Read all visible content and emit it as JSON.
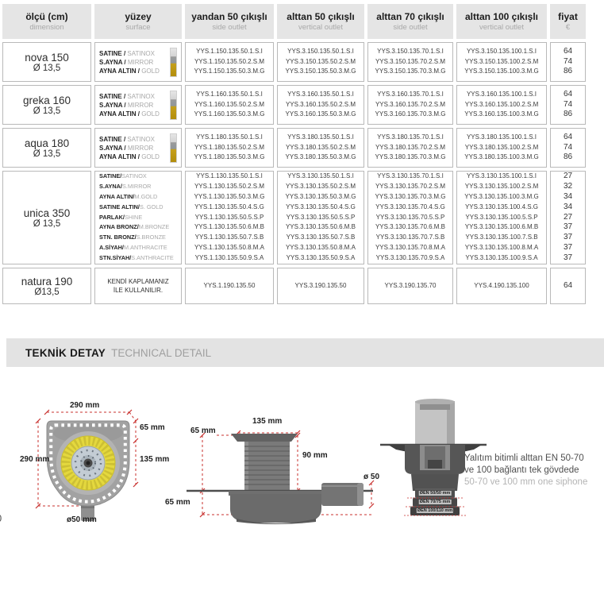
{
  "page": {
    "partial_page_number": "0"
  },
  "table": {
    "headers": [
      {
        "tr": "ölçü (cm)",
        "en": "dimension"
      },
      {
        "tr": "yüzey",
        "en": "surface"
      },
      {
        "tr": "yandan 50 çıkışlı",
        "en": "side outlet"
      },
      {
        "tr": "alttan 50 çıkışlı",
        "en": "vertical outlet"
      },
      {
        "tr": "alttan 70 çıkışlı",
        "en": "side outlet"
      },
      {
        "tr": "alttan 100 çıkışlı",
        "en": "vertical outlet"
      },
      {
        "tr": "fiyat",
        "en": "€"
      }
    ],
    "rows": [
      {
        "name": "nova 150",
        "dia": "Ø 13,5",
        "surfaces": [
          [
            "SATINE / ",
            "SATINOX"
          ],
          [
            "S.AYNA / ",
            "MIRROR"
          ],
          [
            "AYNA ALTIN / ",
            "GOLD"
          ]
        ],
        "yandan50": [
          "YYS.1.150.135.50.1.S.I",
          "YYS.1.150.135.50.2.S.M",
          "YYS.1.150.135.50.3.M.G"
        ],
        "alttan50": [
          "YYS.3.150.135.50.1.S.I",
          "YYS.3.150.135.50.2.S.M",
          "YYS.3.150.135.50.3.M.G"
        ],
        "alttan70": [
          "YYS.3.150.135.70.1.S.I",
          "YYS.3.150.135.70.2.S.M",
          "YYS.3.150.135.70.3.M.G"
        ],
        "alttan100": [
          "YYS.3.150.135.100.1.S.I",
          "YYS.3.150.135.100.2.S.M",
          "YYS.3.150.135.100.3.M.G"
        ],
        "prices": [
          "64",
          "74",
          "86"
        ]
      },
      {
        "name": "greka 160",
        "dia": "Ø 13,5",
        "surfaces": [
          [
            "SATINE / ",
            "SATINOX"
          ],
          [
            "S.AYNA / ",
            "MIRROR"
          ],
          [
            "AYNA ALTIN / ",
            "GOLD"
          ]
        ],
        "yandan50": [
          "YYS.1.160.135.50.1.S.I",
          "YYS.1.160.135.50.2.S.M",
          "YYS.1.160.135.50.3.M.G"
        ],
        "alttan50": [
          "YYS.3.160.135.50.1.S.I",
          "YYS.3.160.135.50.2.S.M",
          "YYS.3.160.135.50.3.M.G"
        ],
        "alttan70": [
          "YYS.3.160.135.70.1.S.I",
          "YYS.3.160.135.70.2.S.M",
          "YYS.3.160.135.70.3.M.G"
        ],
        "alttan100": [
          "YYS.3.160.135.100.1.S.I",
          "YYS.3.160.135.100.2.S.M",
          "YYS.3.160.135.100.3.M.G"
        ],
        "prices": [
          "64",
          "74",
          "86"
        ]
      },
      {
        "name": "aqua 180",
        "dia": "Ø 13,5",
        "surfaces": [
          [
            "SATINE / ",
            "SATINOX"
          ],
          [
            "S.AYNA / ",
            "MIRROR"
          ],
          [
            "AYNA ALTIN / ",
            "GOLD"
          ]
        ],
        "yandan50": [
          "YYS.1.180.135.50.1.S.I",
          "YYS.1.180.135.50.2.S.M",
          "YYS.1.180.135.50.3.M.G"
        ],
        "alttan50": [
          "YYS.3.180.135.50.1.S.I",
          "YYS.3.180.135.50.2.S.M",
          "YYS.3.180.135.50.3.M.G"
        ],
        "alttan70": [
          "YYS.3.180.135.70.1.S.I",
          "YYS.3.180.135.70.2.S.M",
          "YYS.3.180.135.70.3.M.G"
        ],
        "alttan100": [
          "YYS.3.180.135.100.1.S.I",
          "YYS.3.180.135.100.2.S.M",
          "YYS.3.180.135.100.3.M.G"
        ],
        "prices": [
          "64",
          "74",
          "86"
        ]
      },
      {
        "name": "unica 350",
        "dia": "Ø 13,5",
        "surfaces": [
          [
            "SATINE/",
            "SATINOX"
          ],
          [
            "S.AYNA/",
            "S.MIRROR"
          ],
          [
            "AYNA ALTIN/",
            "M.GOLD"
          ],
          [
            "SATINE ALTIN/",
            "S. GOLD"
          ],
          [
            "PARLAK/",
            "SHINE"
          ],
          [
            "AYNA BRONZ/",
            "M.BRONZE"
          ],
          [
            "STN. BRONZ/",
            "S.BRONZE"
          ],
          [
            "A.SİYAH/",
            "M.ANTHRACITE"
          ],
          [
            "STN.SİYAH/",
            "S.ANTHRACITE"
          ]
        ],
        "yandan50": [
          "YYS.1.130.135.50.1.S.I",
          "YYS.1.130.135.50.2.S.M",
          "YYS.1.130.135.50.3.M.G",
          "YYS.1.130.135.50.4.S.G",
          "YYS.1.130.135.50.5.S.P",
          "YYS.1.130.135.50.6.M.B",
          "YYS.1.130.135.50.7.S.B",
          "YYS.1.130.135.50.8.M.A",
          "YYS.1.130.135.50.9.S.A"
        ],
        "alttan50": [
          "YYS.3.130.135.50.1.S.I",
          "YYS.3.130.135.50.2.S.M",
          "YYS.3.130.135.50.3.M.G",
          "YYS.3.130.135.50.4.S.G",
          "YYS.3.130.135.50.5.S.P",
          "YYS.3.130.135.50.6.M.B",
          "YYS.3.130.135.50.7.S.B",
          "YYS.3.130.135.50.8.M.A",
          "YYS.3.130.135.50.9.S.A"
        ],
        "alttan70": [
          "YYS.3.130.135.70.1.S.I",
          "YYS.3.130.135.70.2.S.M",
          "YYS.3.130.135.70.3.M.G",
          "YYS.3.130.135.70.4.S.G",
          "YYS.3.130.135.70.5.S.P",
          "YYS.3.130.135.70.6.M.B",
          "YYS.3.130.135.70.7.S.B",
          "YYS.3.130.135.70.8.M.A",
          "YYS.3.130.135.70.9.S.A"
        ],
        "alttan100": [
          "YYS.3.130.135.100.1.S.I",
          "YYS.3.130.135.100.2.S.M",
          "YYS.3.130.135.100.3.M.G",
          "YYS.3.130.135.100.4.S.G",
          "YYS.3.130.135.100.5.S.P",
          "YYS.3.130.135.100.6.M.B",
          "YYS.3.130.135.100.7.S.B",
          "YYS.3.130.135.100.8.M.A",
          "YYS.3.130.135.100.9.S.A"
        ],
        "prices": [
          "27",
          "32",
          "34",
          "34",
          "27",
          "37",
          "37",
          "37",
          "37"
        ]
      },
      {
        "name": "natura 190",
        "dia": "Ø13,5",
        "surface_note": [
          "KENDİ KAPLAMANIZ",
          "İLE KULLANILIR."
        ],
        "yandan50": [
          "YYS.1.190.135.50"
        ],
        "alttan50": [
          "YYS.3.190.135.50"
        ],
        "alttan70": [
          "YYS.3.190.135.70"
        ],
        "alttan100": [
          "YYS.4.190.135.100"
        ],
        "prices": [
          "64"
        ]
      }
    ]
  },
  "section": {
    "title_tr": "TEKNİK DETAY",
    "title_en": "TECHNICAL DETAIL"
  },
  "diagrams": {
    "top_view": {
      "dim_width": "290 mm",
      "dim_edge": "65 mm",
      "dim_center": "135 mm",
      "dim_height": "290 mm",
      "dim_outlet": "ø50 mm"
    },
    "side_view": {
      "dim_width": "135 mm",
      "dim_upper_left": "65 mm",
      "dim_body_height": "90 mm",
      "dim_lower_left": "65 mm",
      "dim_outlet": "ø 50"
    },
    "bottom_view": {
      "ring_labels": [
        "ØEN 50/50 mm",
        "ØEN 70/75 mm",
        "ØEN 100/110 mm"
      ]
    },
    "note": {
      "line1": "Yalıtım bitimli alttan EN 50-70",
      "line2": "ve 100 bağlantı tek gövdede",
      "line3": "50-70 ve 100 mm one siphone"
    }
  }
}
